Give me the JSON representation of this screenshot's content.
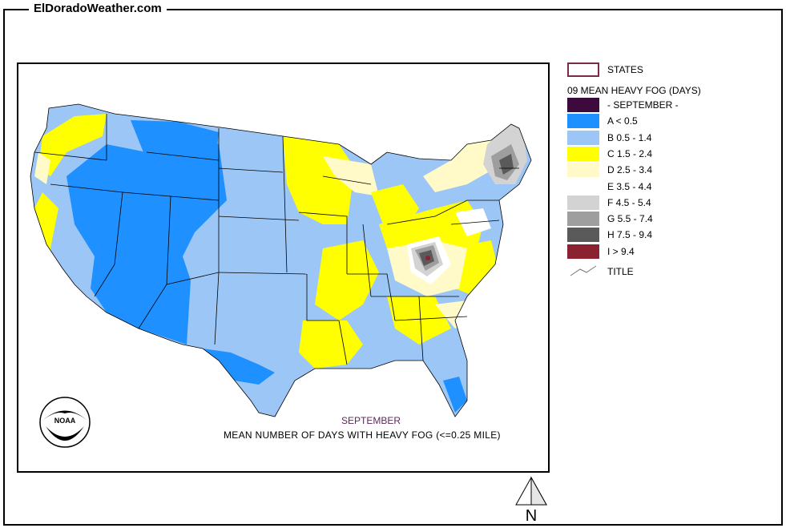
{
  "site": {
    "title": "ElDoradoWeather.com"
  },
  "map": {
    "caption_month": "SEPTEMBER",
    "caption_description": "MEAN NUMBER OF DAYS WITH HEAVY FOG (<=0.25 MILE)",
    "logo_text": "NOAA",
    "north_label": "N"
  },
  "legend": {
    "states_label": "STATES",
    "heading": "09 MEAN HEAVY FOG (DAYS)",
    "title_label": "TITLE",
    "items": [
      {
        "label": "- SEPTEMBER -",
        "color": "#3d0a3d"
      },
      {
        "label": "A < 0.5",
        "color": "#1e90ff"
      },
      {
        "label": "B 0.5 - 1.4",
        "color": "#9cc6f5"
      },
      {
        "label": "C 1.5 - 2.4",
        "color": "#ffff00"
      },
      {
        "label": "D 2.5 - 3.4",
        "color": "#fffac8"
      },
      {
        "label": "E 3.5 - 4.4",
        "color": "#ffffff"
      },
      {
        "label": "F 4.5 - 5.4",
        "color": "#d3d3d3"
      },
      {
        "label": "G 5.5 - 7.4",
        "color": "#9e9e9e"
      },
      {
        "label": "H 7.5 - 9.4",
        "color": "#5a5a5a"
      },
      {
        "label": "I > 9.4",
        "color": "#8b2232"
      }
    ]
  }
}
